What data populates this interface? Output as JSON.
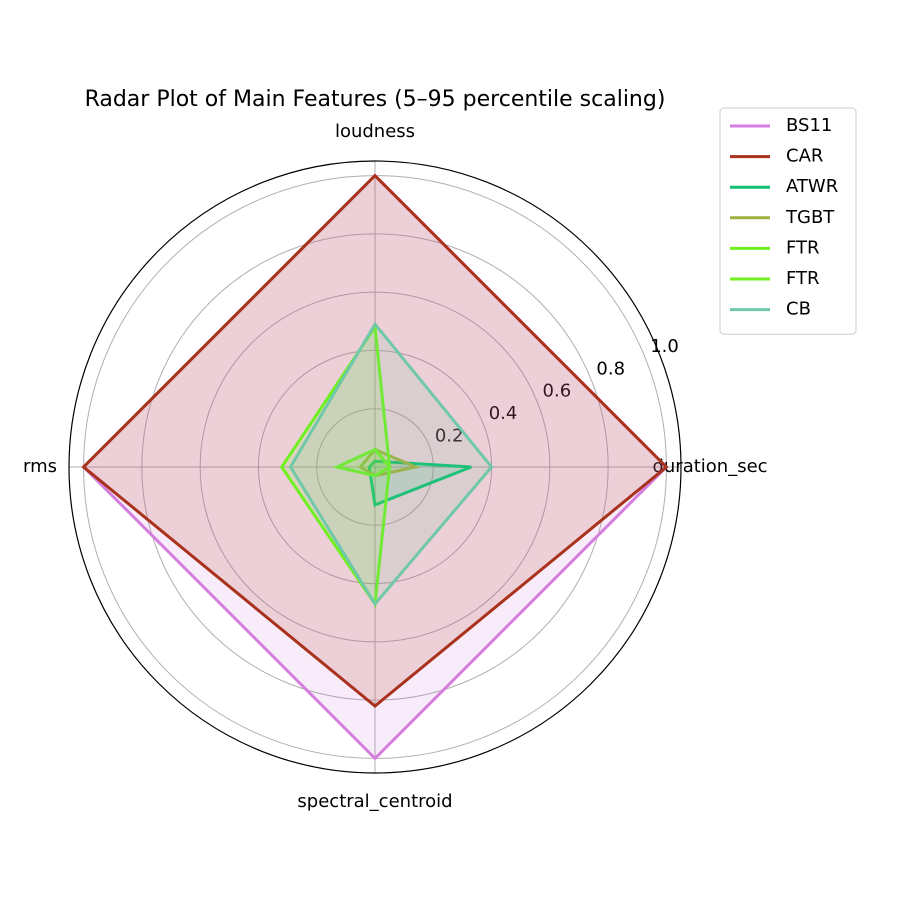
{
  "chart_data": {
    "type": "radar",
    "title": "Radar Plot of Main Features (5–95 percentile scaling)",
    "categories": [
      "duration_sec",
      "loudness",
      "rms",
      "spectral_centroid"
    ],
    "series": [
      {
        "name": "BS11",
        "color": "#d57ee0",
        "values": [
          1.0,
          1.0,
          1.0,
          1.0
        ]
      },
      {
        "name": "CAR",
        "color": "#a8321c",
        "values": [
          1.0,
          1.0,
          1.0,
          0.82
        ]
      },
      {
        "name": "ATWR",
        "color": "#10c070",
        "values": [
          0.33,
          0.02,
          0.02,
          0.13
        ]
      },
      {
        "name": "TGBT",
        "color": "#a0b040",
        "values": [
          0.14,
          0.06,
          0.05,
          0.03
        ]
      },
      {
        "name": "FTR",
        "color": "#70f020",
        "values": [
          0.05,
          0.48,
          0.32,
          0.47
        ]
      },
      {
        "name": "FTR",
        "color": "#70f020",
        "values": [
          0.05,
          0.06,
          0.13,
          0.03
        ]
      },
      {
        "name": "CB",
        "color": "#70c8a8",
        "values": [
          0.4,
          0.49,
          0.29,
          0.47
        ]
      }
    ],
    "ylim": [
      0,
      1.05
    ],
    "yticks": [
      0.2,
      0.4,
      0.6,
      0.8,
      {
        "value": 1,
        "label": "1.0"
      }
    ],
    "grid": true,
    "legend": "upper right outside"
  }
}
